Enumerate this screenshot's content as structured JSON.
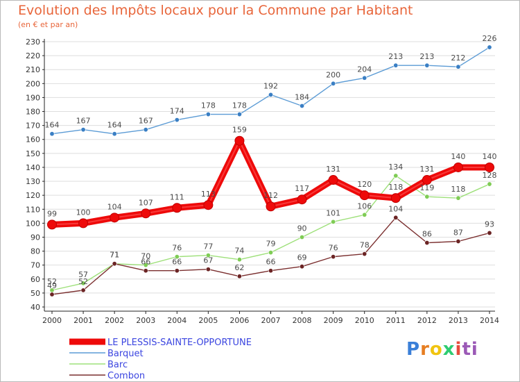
{
  "title": "Evolution des Impôts locaux pour la Commune par Habitant",
  "subtitle": "(en € et par an)",
  "logo": {
    "text": "Proxiti",
    "letters": [
      "P",
      "r",
      "o",
      "x",
      "i",
      "ti"
    ]
  },
  "colors": {
    "title": "#e8653a",
    "grid": "#dedede",
    "axis": "#222222",
    "legend_text": "#3b45e0"
  },
  "chart_data": {
    "type": "line",
    "title": "Evolution des Impôts locaux pour la Commune par Habitant",
    "subtitle": "(en € et par an)",
    "xlabel": "",
    "ylabel": "",
    "x": [
      "2000",
      "2001",
      "2002",
      "2003",
      "2004",
      "2005",
      "2006",
      "2007",
      "2008",
      "2009",
      "2010",
      "2011",
      "2012",
      "2013",
      "2014"
    ],
    "ylim": [
      40,
      230
    ],
    "yticks": [
      "40",
      "50",
      "60",
      "70",
      "80",
      "90",
      "100",
      "110",
      "120",
      "130",
      "140",
      "150",
      "160",
      "170",
      "180",
      "190",
      "200",
      "210",
      "220",
      "230"
    ],
    "grid": "horizontal",
    "legend_position": "bottom-left",
    "series": [
      {
        "name": "Barquet",
        "color": "#5b9bd5",
        "marker_color": "#3a7fc4",
        "emphasis": false,
        "values": [
          164,
          167,
          164,
          167,
          174,
          178,
          178,
          192,
          184,
          200,
          204,
          213,
          213,
          212,
          226
        ],
        "labels": [
          "164",
          "167",
          "164",
          "167",
          "174",
          "178",
          "178",
          "192",
          "184",
          "200",
          "204",
          "213",
          "213",
          "212",
          "226"
        ]
      },
      {
        "name": "Barc",
        "color": "#9ee07a",
        "marker_color": "#7fcc55",
        "emphasis": false,
        "values": [
          52,
          57,
          71,
          70,
          76,
          77,
          74,
          79,
          90,
          101,
          106,
          134,
          119,
          118,
          128
        ],
        "labels": [
          "52",
          "57",
          "71",
          "70",
          "76",
          "77",
          "74",
          "79",
          "90",
          "101",
          "106",
          "134",
          "119",
          "118",
          "128"
        ]
      },
      {
        "name": "Combon",
        "color": "#7a2e2e",
        "marker_color": "#6b2424",
        "emphasis": false,
        "values": [
          49,
          52,
          71,
          66,
          66,
          67,
          62,
          66,
          69,
          76,
          78,
          104,
          86,
          87,
          93
        ],
        "labels": [
          "49",
          "52",
          "71",
          "66",
          "66",
          "67",
          "62",
          "66",
          "69",
          "76",
          "78",
          "104",
          "86",
          "87",
          "93"
        ]
      },
      {
        "name": "LE PLESSIS-SAINTE-OPPORTUNE",
        "color": "#ee0a0a",
        "marker_color": "#ee0a0a",
        "emphasis": true,
        "values": [
          99,
          100,
          104,
          107,
          111,
          113,
          159,
          112,
          117,
          131,
          120,
          118,
          131,
          140,
          140
        ],
        "labels": [
          "99",
          "100",
          "104",
          "107",
          "111",
          "113",
          "159",
          "112",
          "117",
          "131",
          "120",
          "118",
          "131",
          "140",
          "140"
        ]
      }
    ],
    "legend_order": [
      "LE PLESSIS-SAINTE-OPPORTUNE",
      "Barquet",
      "Barc",
      "Combon"
    ]
  }
}
